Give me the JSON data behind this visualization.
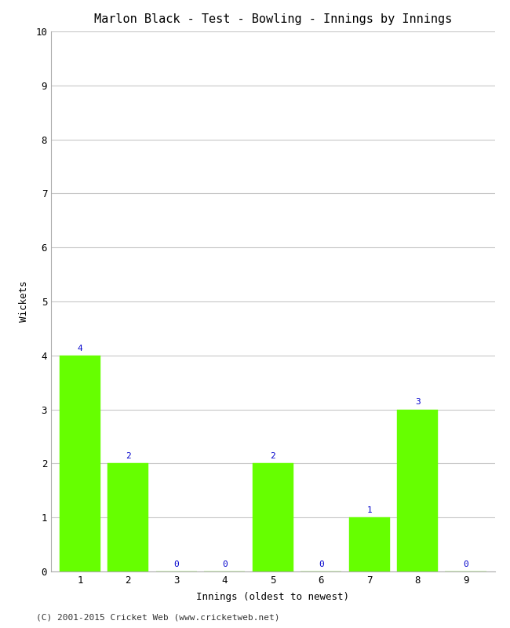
{
  "title": "Marlon Black - Test - Bowling - Innings by Innings",
  "xlabel": "Innings (oldest to newest)",
  "ylabel": "Wickets",
  "categories": [
    1,
    2,
    3,
    4,
    5,
    6,
    7,
    8,
    9
  ],
  "values": [
    4,
    2,
    0,
    0,
    2,
    0,
    1,
    3,
    0
  ],
  "bar_color": "#66ff00",
  "bar_edge_color": "#66ff00",
  "label_color": "#0000cc",
  "ylim": [
    0,
    10
  ],
  "yticks": [
    0,
    1,
    2,
    3,
    4,
    5,
    6,
    7,
    8,
    9,
    10
  ],
  "xticks": [
    1,
    2,
    3,
    4,
    5,
    6,
    7,
    8,
    9
  ],
  "background_color": "#ffffff",
  "grid_color": "#c8c8c8",
  "title_fontsize": 11,
  "axis_label_fontsize": 9,
  "tick_fontsize": 9,
  "annotation_fontsize": 8,
  "footer": "(C) 2001-2015 Cricket Web (www.cricketweb.net)",
  "footer_fontsize": 8,
  "bar_width": 0.85,
  "xlim": [
    0.4,
    9.6
  ]
}
